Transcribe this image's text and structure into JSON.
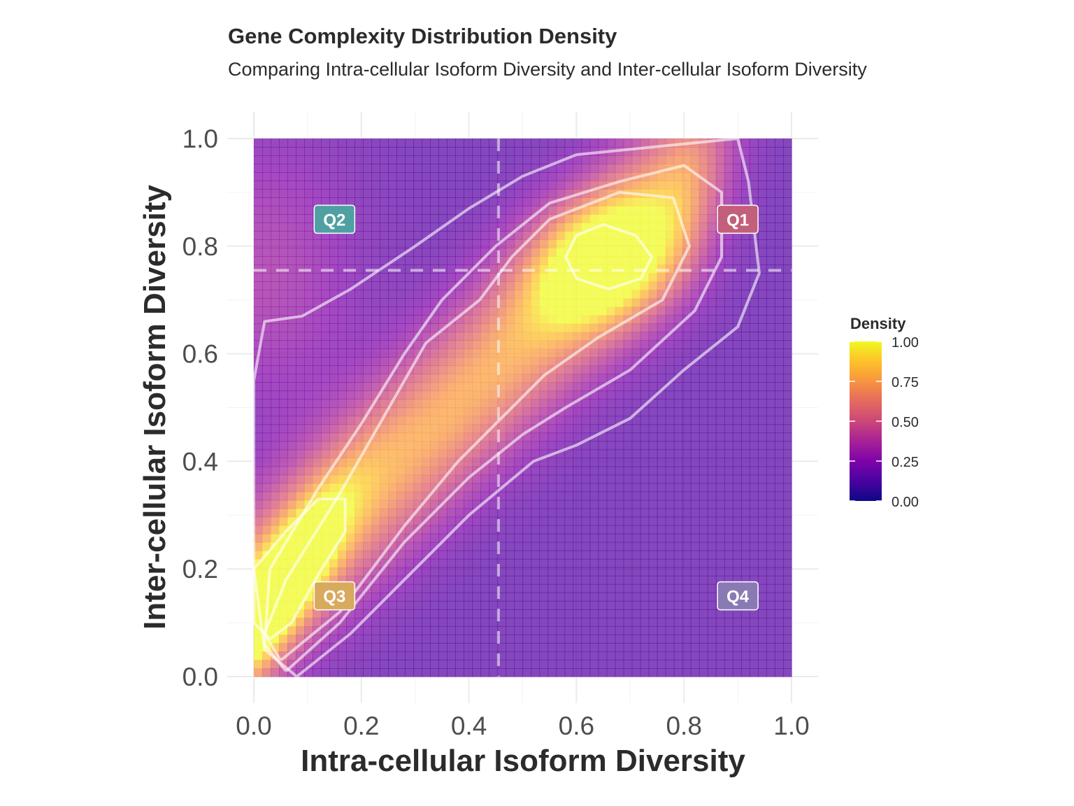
{
  "title": "Gene Complexity Distribution Density",
  "subtitle": "Comparing Intra-cellular Isoform Diversity and Inter-cellular Isoform Diversity",
  "chart_data": {
    "type": "heatmap",
    "subtype": "2d-density-with-contours",
    "title": "Gene Complexity Distribution Density",
    "subtitle": "Comparing Intra-cellular Isoform Diversity and Inter-cellular Isoform Diversity",
    "xlabel": "Intra-cellular Isoform Diversity",
    "ylabel": "Inter-cellular Isoform Diversity",
    "xlim": [
      0,
      1
    ],
    "ylim": [
      0,
      1
    ],
    "x_ticks": [
      "0.0",
      "0.2",
      "0.4",
      "0.6",
      "0.8",
      "1.0"
    ],
    "y_ticks": [
      "0.0",
      "0.2",
      "0.4",
      "0.6",
      "0.8",
      "1.0"
    ],
    "grid": true,
    "density_modes": [
      {
        "x": 0.05,
        "y": 0.16,
        "density": 1.0
      },
      {
        "x": 0.65,
        "y": 0.77,
        "density": 0.9
      }
    ],
    "density_range": [
      0.12,
      1.0
    ],
    "reference_lines": {
      "vertical_x": 0.455,
      "horizontal_y": 0.755,
      "style": "dashed"
    },
    "contour_levels": 5,
    "quadrants": [
      {
        "label": "Q1",
        "x": 0.9,
        "y": 0.85,
        "color": "#c25f7a"
      },
      {
        "label": "Q2",
        "x": 0.15,
        "y": 0.85,
        "color": "#4fa0a3"
      },
      {
        "label": "Q3",
        "x": 0.15,
        "y": 0.15,
        "color": "#d8aa5e"
      },
      {
        "label": "Q4",
        "x": 0.9,
        "y": 0.15,
        "color": "#8a7ab4"
      }
    ],
    "colorscale": "plasma",
    "legend": {
      "title": "Density",
      "ticks": [
        "1.00",
        "0.75",
        "0.50",
        "0.25",
        "0.00"
      ],
      "tick_values": [
        1.0,
        0.75,
        0.5,
        0.25,
        0.0
      ],
      "placement": "right"
    }
  }
}
